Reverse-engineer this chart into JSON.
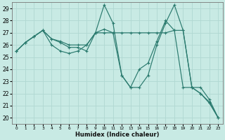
{
  "title": "",
  "xlabel": "Humidex (Indice chaleur)",
  "ylabel": "",
  "bg_color": "#c8eae4",
  "grid_color": "#b0d8d2",
  "line_color": "#2a7a6e",
  "xlim": [
    -0.5,
    23.5
  ],
  "ylim": [
    19.5,
    29.5
  ],
  "xticks": [
    0,
    1,
    2,
    3,
    4,
    5,
    6,
    7,
    8,
    9,
    10,
    11,
    12,
    13,
    14,
    15,
    16,
    17,
    18,
    19,
    20,
    21,
    22,
    23
  ],
  "yticks": [
    20,
    21,
    22,
    23,
    24,
    25,
    26,
    27,
    28,
    29
  ],
  "series1": {
    "x": [
      0,
      1,
      2,
      3,
      4,
      5,
      6,
      7,
      8,
      9,
      10,
      11,
      12,
      13,
      14,
      15,
      16,
      17,
      18,
      19,
      20,
      21,
      22,
      23
    ],
    "y": [
      25.5,
      26.2,
      26.7,
      27.2,
      26.0,
      25.5,
      25.3,
      25.5,
      26.0,
      27.0,
      29.3,
      27.8,
      23.5,
      22.5,
      22.5,
      23.5,
      26.0,
      27.8,
      29.3,
      27.2,
      22.5,
      22.0,
      21.3,
      20.0
    ]
  },
  "series2": {
    "x": [
      0,
      1,
      2,
      3,
      4,
      5,
      6,
      7,
      8,
      9,
      10,
      11,
      12,
      13,
      14,
      15,
      16,
      17,
      18,
      19,
      20,
      21,
      22,
      23
    ],
    "y": [
      25.5,
      26.2,
      26.7,
      27.2,
      26.5,
      26.3,
      26.0,
      26.0,
      26.0,
      27.0,
      27.0,
      27.0,
      27.0,
      27.0,
      27.0,
      27.0,
      27.0,
      27.0,
      27.2,
      27.2,
      22.5,
      22.5,
      21.5,
      20.0
    ]
  },
  "series3": {
    "x": [
      0,
      1,
      2,
      3,
      4,
      5,
      6,
      7,
      8,
      9,
      10,
      11,
      12,
      13,
      14,
      15,
      16,
      17,
      18,
      19,
      20,
      21,
      22,
      23
    ],
    "y": [
      25.5,
      26.2,
      26.7,
      27.2,
      26.5,
      26.2,
      25.8,
      25.8,
      25.5,
      27.0,
      27.3,
      27.0,
      23.5,
      22.5,
      24.0,
      24.5,
      26.3,
      28.0,
      27.2,
      22.5,
      22.5,
      22.0,
      21.2,
      20.0
    ]
  }
}
